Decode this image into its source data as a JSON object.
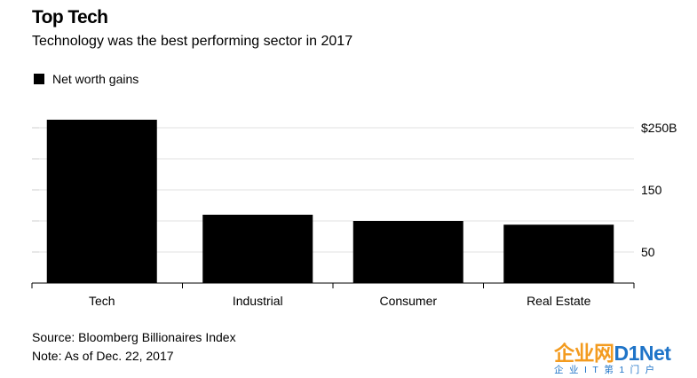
{
  "header": {
    "title": "Top Tech",
    "subtitle": "Technology was the best performing sector in 2017"
  },
  "legend": {
    "label": "Net worth gains",
    "color": "#000000"
  },
  "footer": {
    "source": "Source: Bloomberg Billionaires Index",
    "note": "Note: As of Dec. 22, 2017"
  },
  "watermark": {
    "brand_a": "企业网",
    "brand_b": "D1Net",
    "tagline": "企业IT第1门户"
  },
  "chart_data": {
    "type": "bar",
    "title": "Top Tech",
    "subtitle": "Technology was the best performing sector in 2017",
    "categories": [
      "Tech",
      "Industrial",
      "Consumer",
      "Real Estate"
    ],
    "series": [
      {
        "name": "Net worth gains",
        "values": [
          263,
          110,
          100,
          94
        ],
        "color": "#000000"
      }
    ],
    "ylim": [
      0,
      285
    ],
    "yticks": [
      50,
      100,
      150,
      200,
      250
    ],
    "ytick_labels": {
      "50": "50",
      "150": "150",
      "250": "$250B"
    },
    "grid": true,
    "legend_position": "top-left",
    "xlabel": "",
    "ylabel": ""
  }
}
